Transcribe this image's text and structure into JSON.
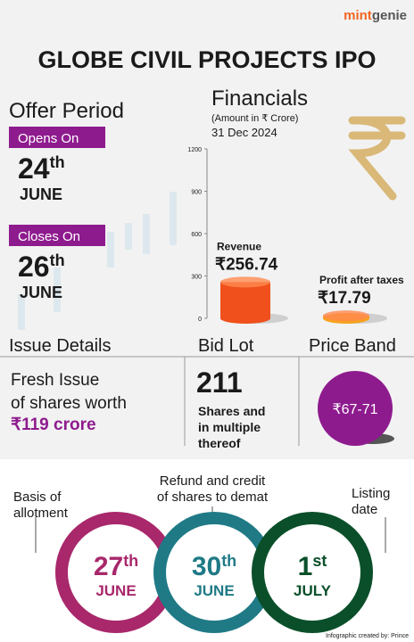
{
  "brand": {
    "part1": "mint",
    "part2": "genie"
  },
  "title": "GLOBE CIVIL PROJECTS IPO",
  "offer_period": {
    "title": "Offer Period",
    "opens": {
      "label": "Opens On",
      "day": "24",
      "suffix": "th",
      "month": "JUNE"
    },
    "closes": {
      "label": "Closes On",
      "day": "26",
      "suffix": "th",
      "month": "JUNE"
    }
  },
  "chart_data": {
    "type": "bar",
    "title": "Financials",
    "subtitle": "(Amount in ₹ Crore)",
    "date": "31 Dec 2024",
    "categories": [
      "Revenue",
      "Profit after taxes"
    ],
    "values": [
      256.74,
      17.79
    ],
    "value_labels": [
      "₹256.74",
      "₹17.79"
    ],
    "colors": [
      "#f0501c",
      "#f7a21b"
    ],
    "ylim": [
      0,
      1200
    ],
    "yticks": [
      0,
      300,
      600,
      900,
      1200
    ]
  },
  "issue_details": {
    "title": "Issue Details",
    "lines": [
      "Fresh Issue",
      "of shares worth"
    ],
    "amount": "₹119 crore"
  },
  "bid_lot": {
    "title": "Bid Lot",
    "value": "211",
    "lines": [
      "Shares and",
      "in multiple",
      "thereof"
    ]
  },
  "price_band": {
    "title": "Price Band",
    "value": "₹67-71"
  },
  "timeline": {
    "allotment": {
      "lines": [
        "Basis of",
        "allotment"
      ],
      "day": "27",
      "suffix": "th",
      "month": "JUNE"
    },
    "refund": {
      "lines": [
        "Refund and credit",
        "of shares to demat"
      ],
      "day": "30",
      "suffix": "th",
      "month": "JUNE"
    },
    "listing": {
      "lines": [
        "Listing",
        "date"
      ],
      "day": "1",
      "suffix": "st",
      "month": "JULY"
    }
  },
  "credit": "Infographic created by: Prince"
}
